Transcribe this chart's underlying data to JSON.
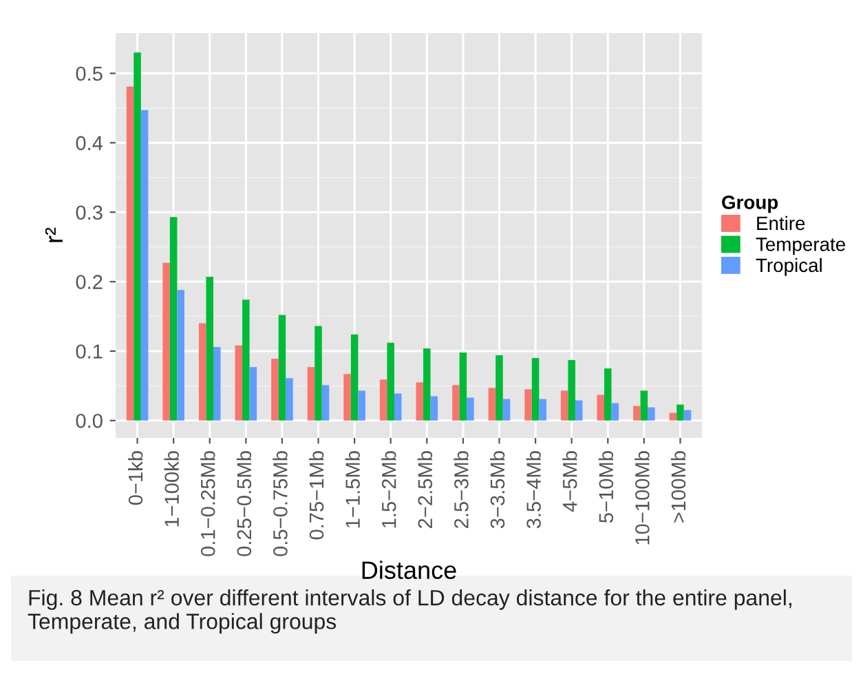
{
  "chart_data": {
    "type": "bar",
    "xlabel": "Distance",
    "ylabel": "r²",
    "legend_title": "Group",
    "categories": [
      "0−1kb",
      "1−100kb",
      "0.1−0.25Mb",
      "0.25−0.5Mb",
      "0.5−0.75Mb",
      "0.75−1Mb",
      "1−1.5Mb",
      "1.5−2Mb",
      "2−2.5Mb",
      "2.5−3Mb",
      "3−3.5Mb",
      "3.5−4Mb",
      "4−5Mb",
      "5−10Mb",
      "10−100Mb",
      ">100Mb"
    ],
    "series": [
      {
        "name": "Entire",
        "color": "#f8766d",
        "values": [
          0.481,
          0.227,
          0.14,
          0.108,
          0.089,
          0.077,
          0.067,
          0.059,
          0.055,
          0.051,
          0.047,
          0.045,
          0.043,
          0.037,
          0.021,
          0.011
        ]
      },
      {
        "name": "Temperate",
        "color": "#00ba38",
        "values": [
          0.53,
          0.293,
          0.207,
          0.174,
          0.152,
          0.136,
          0.124,
          0.112,
          0.104,
          0.098,
          0.094,
          0.09,
          0.087,
          0.075,
          0.043,
          0.023
        ]
      },
      {
        "name": "Tropical",
        "color": "#619cff",
        "values": [
          0.447,
          0.188,
          0.106,
          0.077,
          0.061,
          0.051,
          0.043,
          0.039,
          0.035,
          0.033,
          0.031,
          0.031,
          0.029,
          0.025,
          0.019,
          0.015
        ]
      }
    ],
    "ylim": [
      -0.025,
      0.558
    ],
    "yticks": [
      {
        "value": 0.0,
        "label": "0.0"
      },
      0.1,
      0.2,
      0.3,
      0.4,
      0.5
    ],
    "grid": true,
    "legend": "right",
    "annotations": [
      "Fig. 8 Mean r² over different intervals of LD decay distance for the entire panel, Temperate, and Tropical groups"
    ]
  }
}
